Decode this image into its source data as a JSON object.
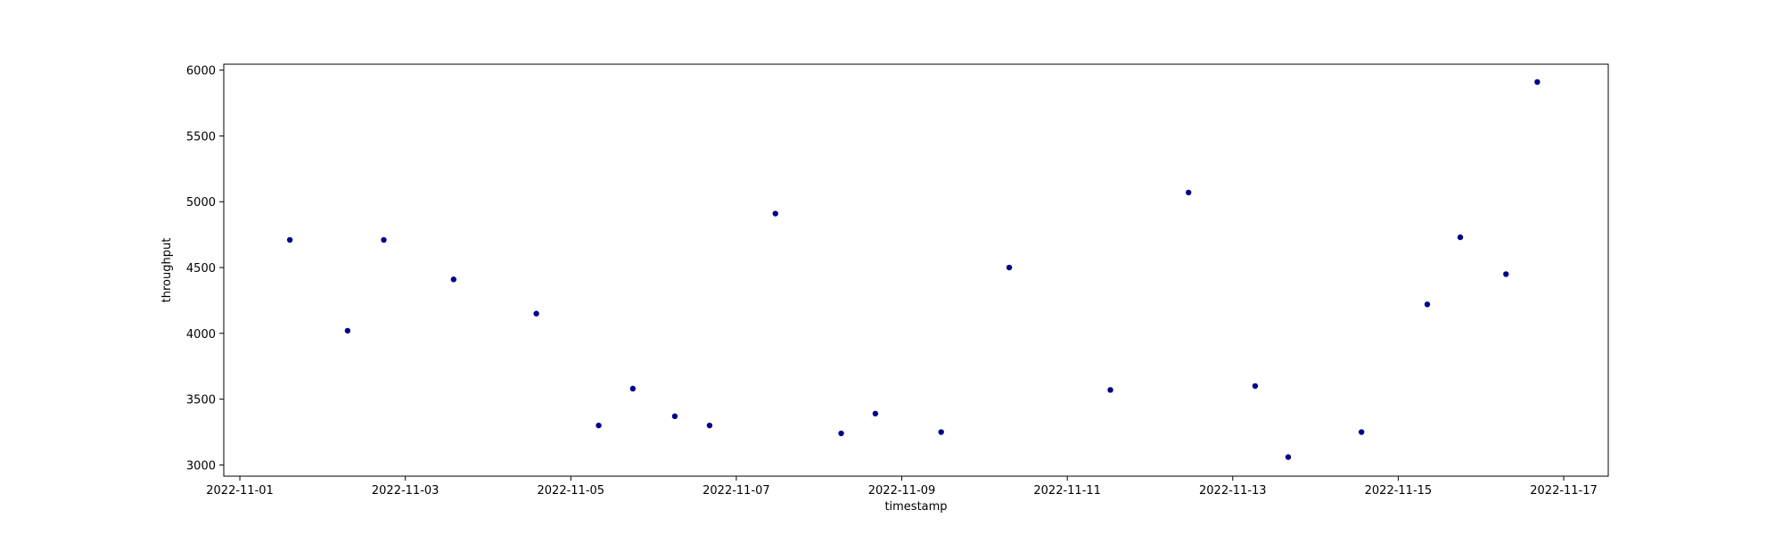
{
  "chart_data": {
    "type": "scatter",
    "title": "",
    "xlabel": "timestamp",
    "ylabel": "throughput",
    "x_ticks": [
      "2022-11-01",
      "2022-11-03",
      "2022-11-05",
      "2022-11-07",
      "2022-11-09",
      "2022-11-11",
      "2022-11-13",
      "2022-11-15",
      "2022-11-17"
    ],
    "y_ticks": [
      3000,
      3500,
      4000,
      4500,
      5000,
      5500,
      6000
    ],
    "xlim": [
      "2022-10-31T19:20",
      "2022-11-17T12:55"
    ],
    "ylim": [
      2915,
      6045
    ],
    "grid": false,
    "marker_color": "#00008b",
    "series": [
      {
        "points": [
          {
            "x": "2022-11-01T14:30",
            "y": 4710
          },
          {
            "x": "2022-11-02T07:15",
            "y": 4020
          },
          {
            "x": "2022-11-02T17:45",
            "y": 4710
          },
          {
            "x": "2022-11-03T14:00",
            "y": 4410
          },
          {
            "x": "2022-11-04T14:00",
            "y": 4150
          },
          {
            "x": "2022-11-05T08:05",
            "y": 3300
          },
          {
            "x": "2022-11-05T18:00",
            "y": 3580
          },
          {
            "x": "2022-11-06T06:10",
            "y": 3370
          },
          {
            "x": "2022-11-06T16:15",
            "y": 3300
          },
          {
            "x": "2022-11-07T11:20",
            "y": 4910
          },
          {
            "x": "2022-11-08T06:25",
            "y": 3240
          },
          {
            "x": "2022-11-08T16:20",
            "y": 3390
          },
          {
            "x": "2022-11-09T11:25",
            "y": 3250
          },
          {
            "x": "2022-11-10T07:10",
            "y": 4500
          },
          {
            "x": "2022-11-11T12:30",
            "y": 3570
          },
          {
            "x": "2022-11-12T11:10",
            "y": 5070
          },
          {
            "x": "2022-11-13T06:30",
            "y": 3600
          },
          {
            "x": "2022-11-13T16:05",
            "y": 3060
          },
          {
            "x": "2022-11-14T13:20",
            "y": 3250
          },
          {
            "x": "2022-11-15T08:25",
            "y": 4220
          },
          {
            "x": "2022-11-15T18:00",
            "y": 4730
          },
          {
            "x": "2022-11-16T07:15",
            "y": 4450
          },
          {
            "x": "2022-11-16T16:20",
            "y": 5910
          }
        ]
      }
    ]
  }
}
